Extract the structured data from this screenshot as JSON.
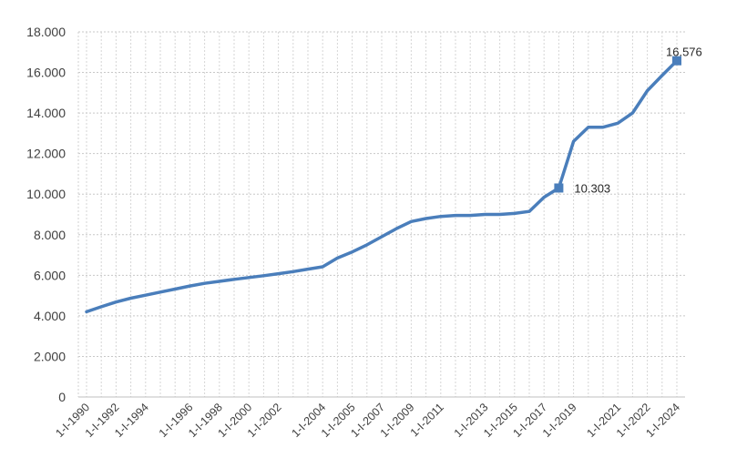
{
  "chart_data": {
    "type": "line",
    "title": "",
    "xlabel": "",
    "ylabel": "",
    "ylim": [
      0,
      18000
    ],
    "grid": true,
    "legend": "none",
    "line_color": "#4a7ebb",
    "y_ticks": [
      "0",
      "2.000",
      "4.000",
      "6.000",
      "8.000",
      "10.000",
      "12.000",
      "14.000",
      "16.000",
      "18.000"
    ],
    "y_tick_values": [
      0,
      2000,
      4000,
      6000,
      8000,
      10000,
      12000,
      14000,
      16000,
      18000
    ],
    "x_tick_labels": [
      "1-I-1990",
      "1-I-1992",
      "1-I-1994",
      "1-I-1996",
      "1-I-1998",
      "1-I-2000",
      "1-I-2002",
      "1-I-2004",
      "1-I-2005",
      "1-I-2007",
      "1-I-2009",
      "1-I-2011",
      "1-I-2013",
      "1-I-2015",
      "1-I-2017",
      "1-I-2019",
      "1-I-2021",
      "1-I-2022",
      "1-I-2024"
    ],
    "series": [
      {
        "values": [
          4200,
          4450,
          4680,
          4870,
          5020,
          5170,
          5320,
          5470,
          5600,
          5700,
          5800,
          5890,
          5980,
          6080,
          6180,
          6300,
          6420,
          6850,
          7150,
          7500,
          7900,
          8300,
          8650,
          8800,
          8900,
          8950,
          8950,
          9000,
          9000,
          9050,
          9150,
          9850,
          10303,
          12600,
          13300,
          13300,
          13500,
          14000,
          15100,
          15850,
          16576
        ]
      }
    ],
    "annotations": [
      {
        "point_index": 32,
        "text": "10.303"
      },
      {
        "point_index": 40,
        "text": "16.576"
      }
    ]
  }
}
